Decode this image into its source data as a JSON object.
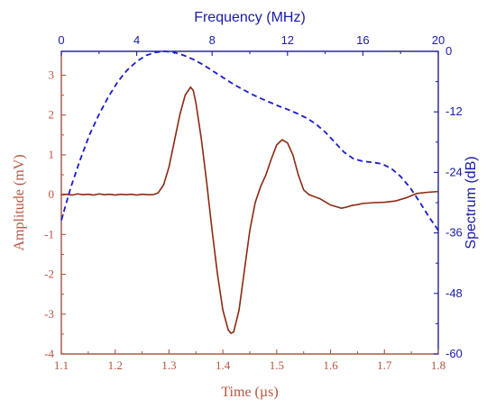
{
  "chart_data": {
    "type": "line",
    "title": "",
    "bottom_axis": {
      "label": "Time (µs)",
      "range": [
        1.1,
        1.8
      ],
      "ticks": [
        "1.1",
        "1.2",
        "1.3",
        "1.4",
        "1.5",
        "1.6",
        "1.7",
        "1.8"
      ],
      "color": "#b5543e"
    },
    "left_axis": {
      "label": "Amplitude (mV)",
      "range": [
        -4,
        3.6
      ],
      "ticks": [
        "3",
        "2",
        "1",
        "0",
        "-1",
        "-2",
        "-3",
        "-4"
      ],
      "color": "#b5543e"
    },
    "top_axis": {
      "label": "Frequency (MHz)",
      "range": [
        0,
        20
      ],
      "ticks": [
        "0",
        "4",
        "8",
        "12",
        "16",
        "20"
      ],
      "color": "#1a1aa8"
    },
    "right_axis": {
      "label": "Spectrum (dB)",
      "range": [
        -60,
        0
      ],
      "ticks": [
        "0",
        "-12",
        "-24",
        "-36",
        "-48",
        "-60"
      ],
      "color": "#1a1aa8"
    },
    "grid": false,
    "series": [
      {
        "axes": "bottom-left",
        "style": "solid",
        "color": "#8b2a12",
        "points": [
          [
            1.1,
            0.0
          ],
          [
            1.11,
            0.01
          ],
          [
            1.12,
            -0.01
          ],
          [
            1.13,
            0.02
          ],
          [
            1.14,
            0.0
          ],
          [
            1.15,
            0.01
          ],
          [
            1.16,
            -0.01
          ],
          [
            1.17,
            0.02
          ],
          [
            1.18,
            0.0
          ],
          [
            1.19,
            0.01
          ],
          [
            1.2,
            -0.01
          ],
          [
            1.21,
            0.01
          ],
          [
            1.22,
            0.0
          ],
          [
            1.23,
            0.01
          ],
          [
            1.24,
            -0.01
          ],
          [
            1.25,
            0.01
          ],
          [
            1.26,
            0.0
          ],
          [
            1.27,
            0.0
          ],
          [
            1.275,
            0.02
          ],
          [
            1.28,
            0.05
          ],
          [
            1.29,
            0.25
          ],
          [
            1.3,
            0.7
          ],
          [
            1.31,
            1.35
          ],
          [
            1.32,
            2.0
          ],
          [
            1.33,
            2.5
          ],
          [
            1.34,
            2.7
          ],
          [
            1.345,
            2.62
          ],
          [
            1.35,
            2.3
          ],
          [
            1.36,
            1.4
          ],
          [
            1.37,
            0.3
          ],
          [
            1.38,
            -0.9
          ],
          [
            1.39,
            -2.0
          ],
          [
            1.4,
            -2.9
          ],
          [
            1.41,
            -3.4
          ],
          [
            1.415,
            -3.48
          ],
          [
            1.42,
            -3.45
          ],
          [
            1.43,
            -2.9
          ],
          [
            1.44,
            -1.9
          ],
          [
            1.45,
            -0.9
          ],
          [
            1.46,
            -0.2
          ],
          [
            1.47,
            0.2
          ],
          [
            1.48,
            0.5
          ],
          [
            1.49,
            0.9
          ],
          [
            1.5,
            1.25
          ],
          [
            1.51,
            1.38
          ],
          [
            1.52,
            1.3
          ],
          [
            1.53,
            1.0
          ],
          [
            1.54,
            0.5
          ],
          [
            1.55,
            0.12
          ],
          [
            1.56,
            0.0
          ],
          [
            1.57,
            -0.05
          ],
          [
            1.58,
            -0.1
          ],
          [
            1.59,
            -0.18
          ],
          [
            1.6,
            -0.26
          ],
          [
            1.61,
            -0.3
          ],
          [
            1.62,
            -0.34
          ],
          [
            1.63,
            -0.31
          ],
          [
            1.64,
            -0.27
          ],
          [
            1.65,
            -0.25
          ],
          [
            1.66,
            -0.22
          ],
          [
            1.68,
            -0.2
          ],
          [
            1.7,
            -0.19
          ],
          [
            1.72,
            -0.16
          ],
          [
            1.74,
            -0.08
          ],
          [
            1.76,
            0.03
          ],
          [
            1.78,
            0.06
          ],
          [
            1.8,
            0.08
          ]
        ]
      },
      {
        "axes": "top-right",
        "style": "dashed",
        "color": "#1a1acc",
        "points": [
          [
            0.0,
            -33.5
          ],
          [
            0.5,
            -27.0
          ],
          [
            1.0,
            -21.5
          ],
          [
            1.5,
            -16.5
          ],
          [
            2.0,
            -12.5
          ],
          [
            2.5,
            -9.0
          ],
          [
            3.0,
            -6.0
          ],
          [
            3.5,
            -3.7
          ],
          [
            4.0,
            -2.0
          ],
          [
            4.5,
            -0.8
          ],
          [
            5.0,
            -0.2
          ],
          [
            5.5,
            0.0
          ],
          [
            6.0,
            -0.2
          ],
          [
            6.5,
            -0.8
          ],
          [
            7.0,
            -1.6
          ],
          [
            7.5,
            -2.6
          ],
          [
            8.0,
            -3.8
          ],
          [
            8.5,
            -5.0
          ],
          [
            9.0,
            -6.2
          ],
          [
            9.5,
            -7.3
          ],
          [
            10.0,
            -8.3
          ],
          [
            10.5,
            -9.2
          ],
          [
            11.0,
            -10.0
          ],
          [
            11.5,
            -10.8
          ],
          [
            12.0,
            -11.5
          ],
          [
            12.5,
            -12.3
          ],
          [
            13.0,
            -13.2
          ],
          [
            13.5,
            -14.4
          ],
          [
            14.0,
            -16.0
          ],
          [
            14.5,
            -18.0
          ],
          [
            15.0,
            -20.0
          ],
          [
            15.5,
            -21.3
          ],
          [
            16.0,
            -21.8
          ],
          [
            16.5,
            -22.0
          ],
          [
            17.0,
            -22.3
          ],
          [
            17.5,
            -23.2
          ],
          [
            18.0,
            -24.8
          ],
          [
            18.5,
            -27.0
          ],
          [
            19.0,
            -29.8
          ],
          [
            19.5,
            -32.8
          ],
          [
            20.0,
            -35.5
          ]
        ]
      }
    ]
  }
}
